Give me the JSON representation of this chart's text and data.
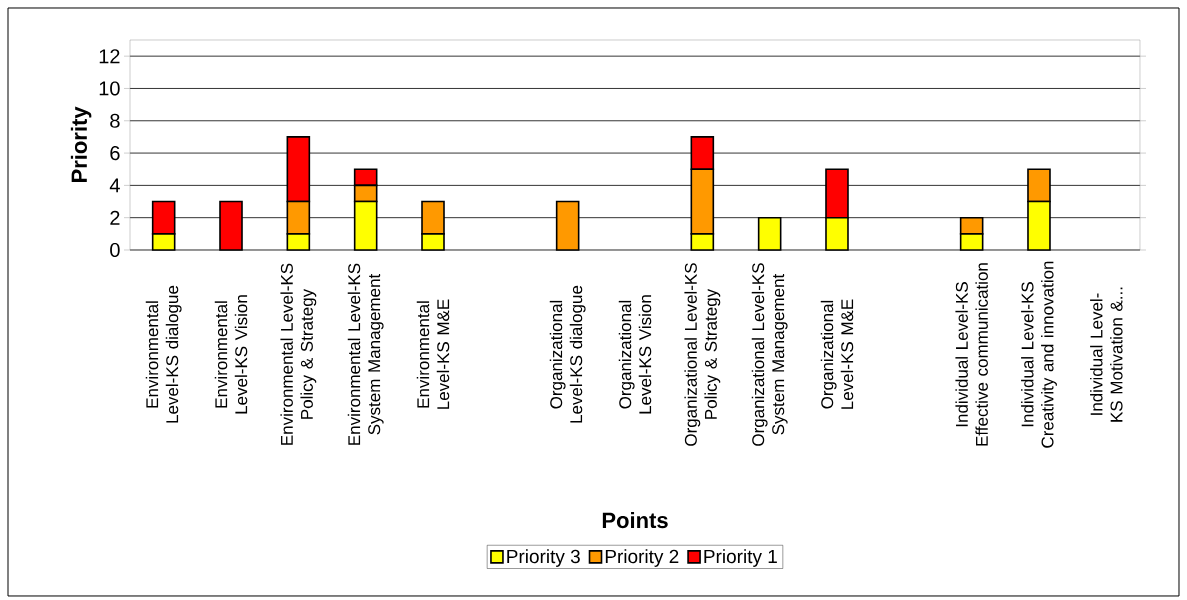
{
  "chart_data": {
    "type": "bar",
    "stacked": true,
    "xlabel": "Points",
    "ylabel": "Priority",
    "categories": [
      "Environmental Level-KS dialogue",
      "Environmental Level-KS Vision",
      "Environmental Level-KS Policy & Strategy",
      "Environmental Level-KS System Management",
      "Environmental Level-KS M&E",
      null,
      "Organizational Level-KS dialogue",
      "Organizational Level-KS Vision",
      "Organizational Level-KS Policy & Strategy",
      "Organizational Level-KS System Management",
      "Organizational Level-KS M&E",
      null,
      "Individual Level-KS Effective communication",
      "Individual Level-KS Creativity and innovation",
      "Individual Level-KS Motivation &..."
    ],
    "series": [
      {
        "name": "Priority 3",
        "color": "#ffff00",
        "values": [
          1,
          0,
          1,
          3,
          1,
          null,
          0,
          0,
          1,
          2,
          2,
          null,
          1,
          3,
          0
        ]
      },
      {
        "name": "Priority 2",
        "color": "#ff9900",
        "values": [
          0,
          0,
          2,
          1,
          2,
          null,
          3,
          0,
          4,
          0,
          0,
          null,
          1,
          2,
          0
        ]
      },
      {
        "name": "Priority 1",
        "color": "#ff0000",
        "values": [
          2,
          3,
          4,
          1,
          0,
          null,
          0,
          0,
          2,
          0,
          3,
          null,
          0,
          0,
          0
        ]
      }
    ],
    "ylim": [
      0,
      13
    ],
    "yticks": [
      0,
      2,
      4,
      6,
      8,
      10,
      12
    ],
    "grid": "y",
    "legend": "bottom"
  }
}
